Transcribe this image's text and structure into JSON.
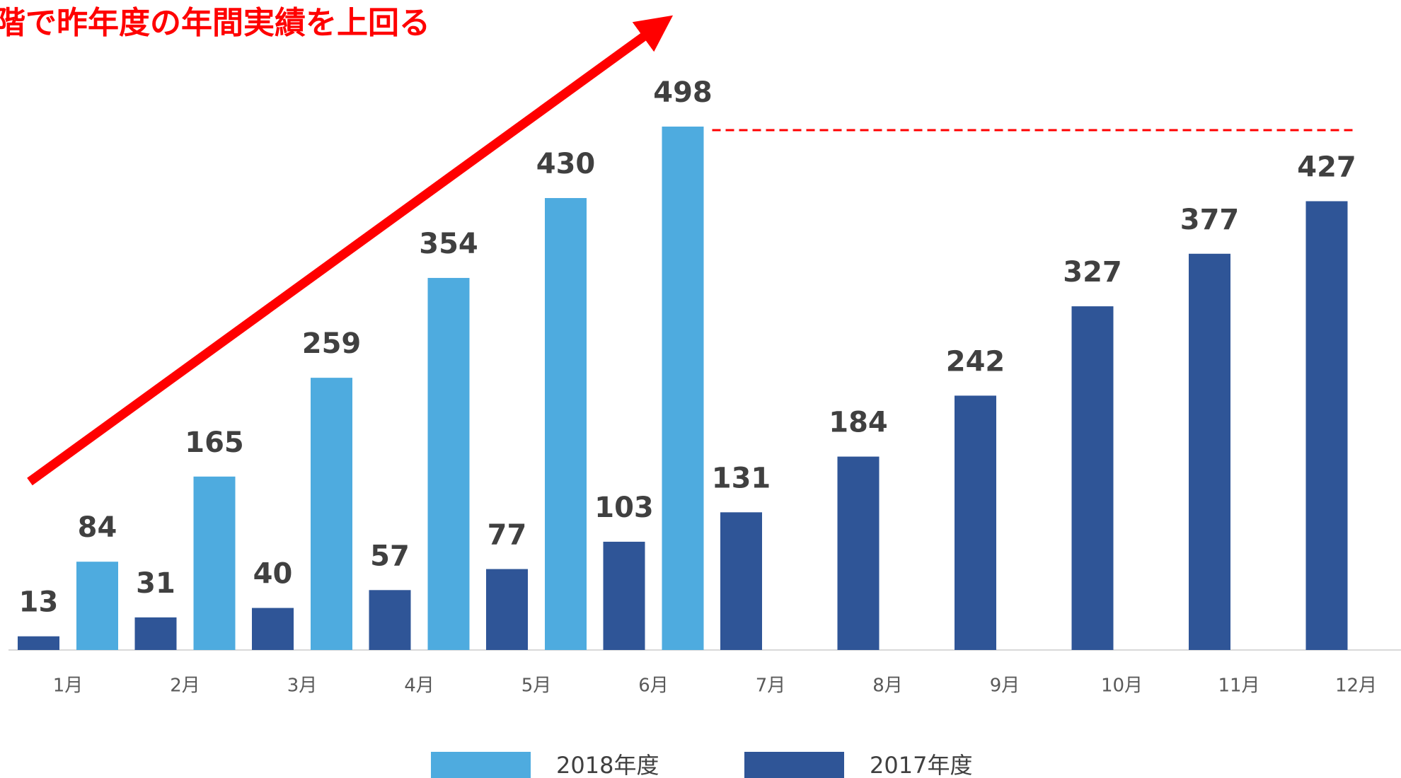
{
  "chart_data": {
    "type": "bar",
    "annotation": "階で昨年度の年間実績を上回る",
    "categories": [
      "1月",
      "2月",
      "3月",
      "4月",
      "5月",
      "6月",
      "7月",
      "8月",
      "9月",
      "10月",
      "11月",
      "12月"
    ],
    "series": [
      {
        "name": "2018年度",
        "color": "#4eabdf",
        "values": [
          84,
          165,
          259,
          354,
          430,
          498,
          null,
          null,
          null,
          null,
          null,
          null
        ]
      },
      {
        "name": "2017年度",
        "color": "#2f5597",
        "values": [
          13,
          31,
          40,
          57,
          77,
          103,
          131,
          184,
          242,
          327,
          377,
          427
        ]
      }
    ],
    "ylim": [
      0,
      500
    ]
  }
}
